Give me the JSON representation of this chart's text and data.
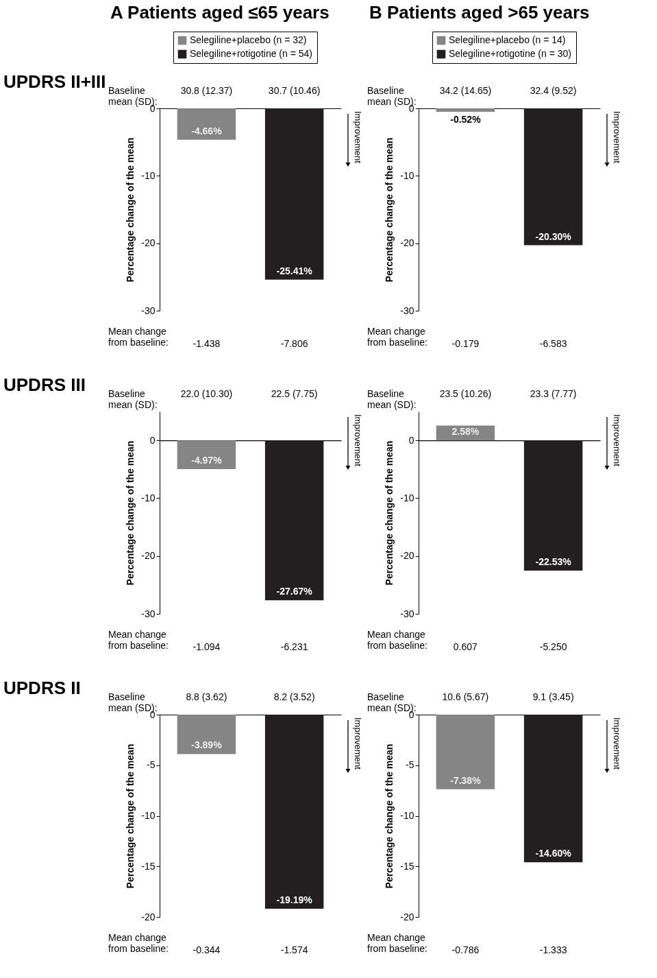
{
  "chart_data": [
    {
      "type": "bar",
      "title": "A  Patients aged ≤65 years",
      "subtitle": "UPDRS II+III",
      "ylabel": "Percentage change of the mean",
      "categories": [
        null,
        null
      ],
      "ylim": [
        -30,
        0
      ],
      "yticks": [
        0,
        -10,
        -20,
        -30
      ],
      "legend": "top",
      "series": [
        {
          "name": "Selegiline+placebo (n = 32)",
          "color": "#858585",
          "values": [
            -4.66,
            null
          ],
          "value_labels": [
            "-4.66%",
            null
          ]
        },
        {
          "name": "Selegiline+rotigotine (n = 54)",
          "color": "#231f20",
          "values": [
            null,
            -25.41
          ],
          "value_labels": [
            null,
            "-25.41%"
          ]
        }
      ],
      "annotations": [
        "Baseline\nmean (SD):",
        "30.8 (12.37)",
        "30.7 (10.46)",
        "Mean change\nfrom baseline:",
        "-1.438",
        "-7.806",
        "Improvement"
      ]
    },
    {
      "type": "bar",
      "title": "B  Patients aged >65 years",
      "ylabel": "Percentage change of the mean",
      "categories": [
        null,
        null
      ],
      "ylim": [
        -30,
        0
      ],
      "yticks": [
        0,
        -10,
        -20,
        -30
      ],
      "legend": "top",
      "series": [
        {
          "name": "Selegiline+placebo (n = 14)",
          "color": "#858585",
          "values": [
            -0.52,
            null
          ],
          "value_labels": [
            "-0.52%",
            null
          ]
        },
        {
          "name": "Selegiline+rotigotine (n = 30)",
          "color": "#231f20",
          "values": [
            null,
            -20.3
          ],
          "value_labels": [
            null,
            "-20.30%"
          ]
        }
      ],
      "annotations": [
        "Baseline\nmean (SD):",
        "34.2 (14.65)",
        "32.4 (9.52)",
        "Mean change\nfrom baseline:",
        "-0.179",
        "-6.583",
        "Improvement"
      ]
    },
    {
      "type": "bar",
      "subtitle": "UPDRS III",
      "ylabel": "Percentage change of the mean",
      "categories": [
        null,
        null
      ],
      "ylim": [
        -30,
        5
      ],
      "yticks": [
        0,
        -10,
        -20,
        -30
      ],
      "series": [
        {
          "color": "#858585",
          "values": [
            -4.97,
            null
          ],
          "value_labels": [
            "-4.97%",
            null
          ]
        },
        {
          "color": "#231f20",
          "values": [
            null,
            -27.67
          ],
          "value_labels": [
            null,
            "-27.67%"
          ]
        }
      ],
      "annotations": [
        "Baseline\nmean (SD):",
        "22.0 (10.30)",
        "22.5 (7.75)",
        "Mean change\nfrom baseline:",
        "-1.094",
        "-6.231",
        "Improvement"
      ]
    },
    {
      "type": "bar",
      "ylabel": "Percentage change of the mean",
      "categories": [
        null,
        null
      ],
      "ylim": [
        -30,
        5
      ],
      "yticks": [
        0,
        -10,
        -20,
        -30
      ],
      "series": [
        {
          "color": "#858585",
          "values": [
            2.58,
            null
          ],
          "value_labels": [
            "2.58%",
            null
          ]
        },
        {
          "color": "#231f20",
          "values": [
            null,
            -22.53
          ],
          "value_labels": [
            null,
            "-22.53%"
          ]
        }
      ],
      "annotations": [
        "Baseline\nmean (SD):",
        "23.5 (10.26)",
        "23.3 (7.77)",
        "Mean change\nfrom baseline:",
        "0.607",
        "-5.250",
        "Improvement"
      ]
    },
    {
      "type": "bar",
      "subtitle": "UPDRS II",
      "ylabel": "Percentage change of the mean",
      "categories": [
        null,
        null
      ],
      "ylim": [
        -20,
        0
      ],
      "yticks": [
        0,
        -5,
        -10,
        -15,
        -20
      ],
      "series": [
        {
          "color": "#858585",
          "values": [
            -3.89,
            null
          ],
          "value_labels": [
            "-3.89%",
            null
          ]
        },
        {
          "color": "#231f20",
          "values": [
            null,
            -19.19
          ],
          "value_labels": [
            null,
            "-19.19%"
          ]
        }
      ],
      "annotations": [
        "Baseline\nmean (SD):",
        "8.8 (3.62)",
        "8.2 (3.52)",
        "Mean change\nfrom baseline:",
        "-0.344",
        "-1.574",
        "Improvement"
      ]
    },
    {
      "type": "bar",
      "ylabel": "Percentage change of the mean",
      "categories": [
        null,
        null
      ],
      "ylim": [
        -20,
        0
      ],
      "yticks": [
        0,
        -5,
        -10,
        -15,
        -20
      ],
      "series": [
        {
          "color": "#858585",
          "values": [
            -7.38,
            null
          ],
          "value_labels": [
            "-7.38%",
            null
          ]
        },
        {
          "color": "#231f20",
          "values": [
            null,
            -14.6
          ],
          "value_labels": [
            null,
            "-14.60%"
          ]
        }
      ],
      "annotations": [
        "Baseline\nmean (SD):",
        "10.6 (5.67)",
        "9.1 (3.45)",
        "Mean change\nfrom baseline:",
        "-0.786",
        "-1.333",
        "Improvement"
      ]
    }
  ]
}
